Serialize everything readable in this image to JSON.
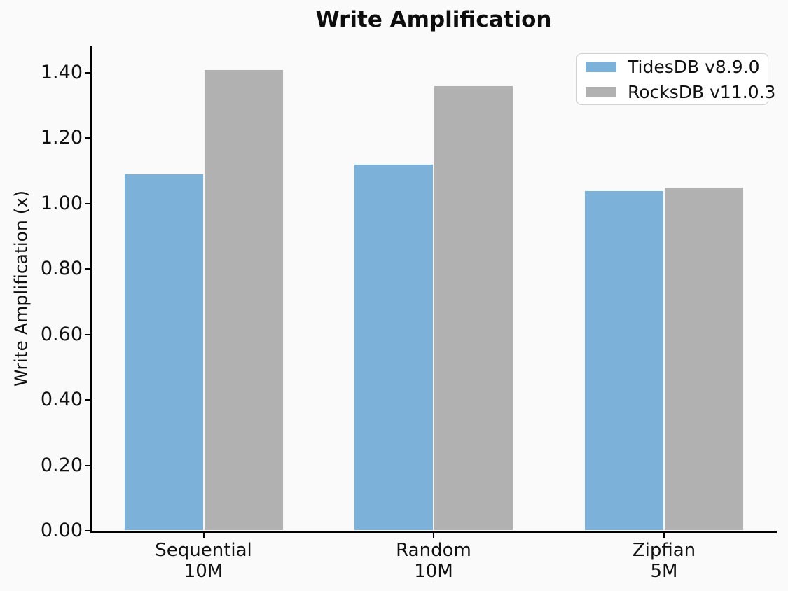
{
  "figure": {
    "background": "#fafafa"
  },
  "chart_data": {
    "type": "bar",
    "title": "Write Amplification",
    "xlabel": "",
    "ylabel": "Write Amplification (x)",
    "categories": [
      {
        "label": "Sequential",
        "sublabel": "10M"
      },
      {
        "label": "Random",
        "sublabel": "10M"
      },
      {
        "label": "Zipfian",
        "sublabel": "5M"
      }
    ],
    "series": [
      {
        "name": "TidesDB v8.9.0",
        "color": "#7cb2d9",
        "values": [
          1.09,
          1.12,
          1.04
        ]
      },
      {
        "name": "RocksDB v11.0.3",
        "color": "#b1b1b1",
        "values": [
          1.41,
          1.36,
          1.05
        ]
      }
    ],
    "ylim": [
      0.0,
      1.48
    ],
    "ytick_labels": [
      "0.00",
      "0.20",
      "0.40",
      "0.60",
      "0.80",
      "1.00",
      "1.20",
      "1.40"
    ],
    "grid": false,
    "legend_position": "upper-right",
    "bar_edge_color": "#ffffff",
    "axis_color": "#000000"
  }
}
